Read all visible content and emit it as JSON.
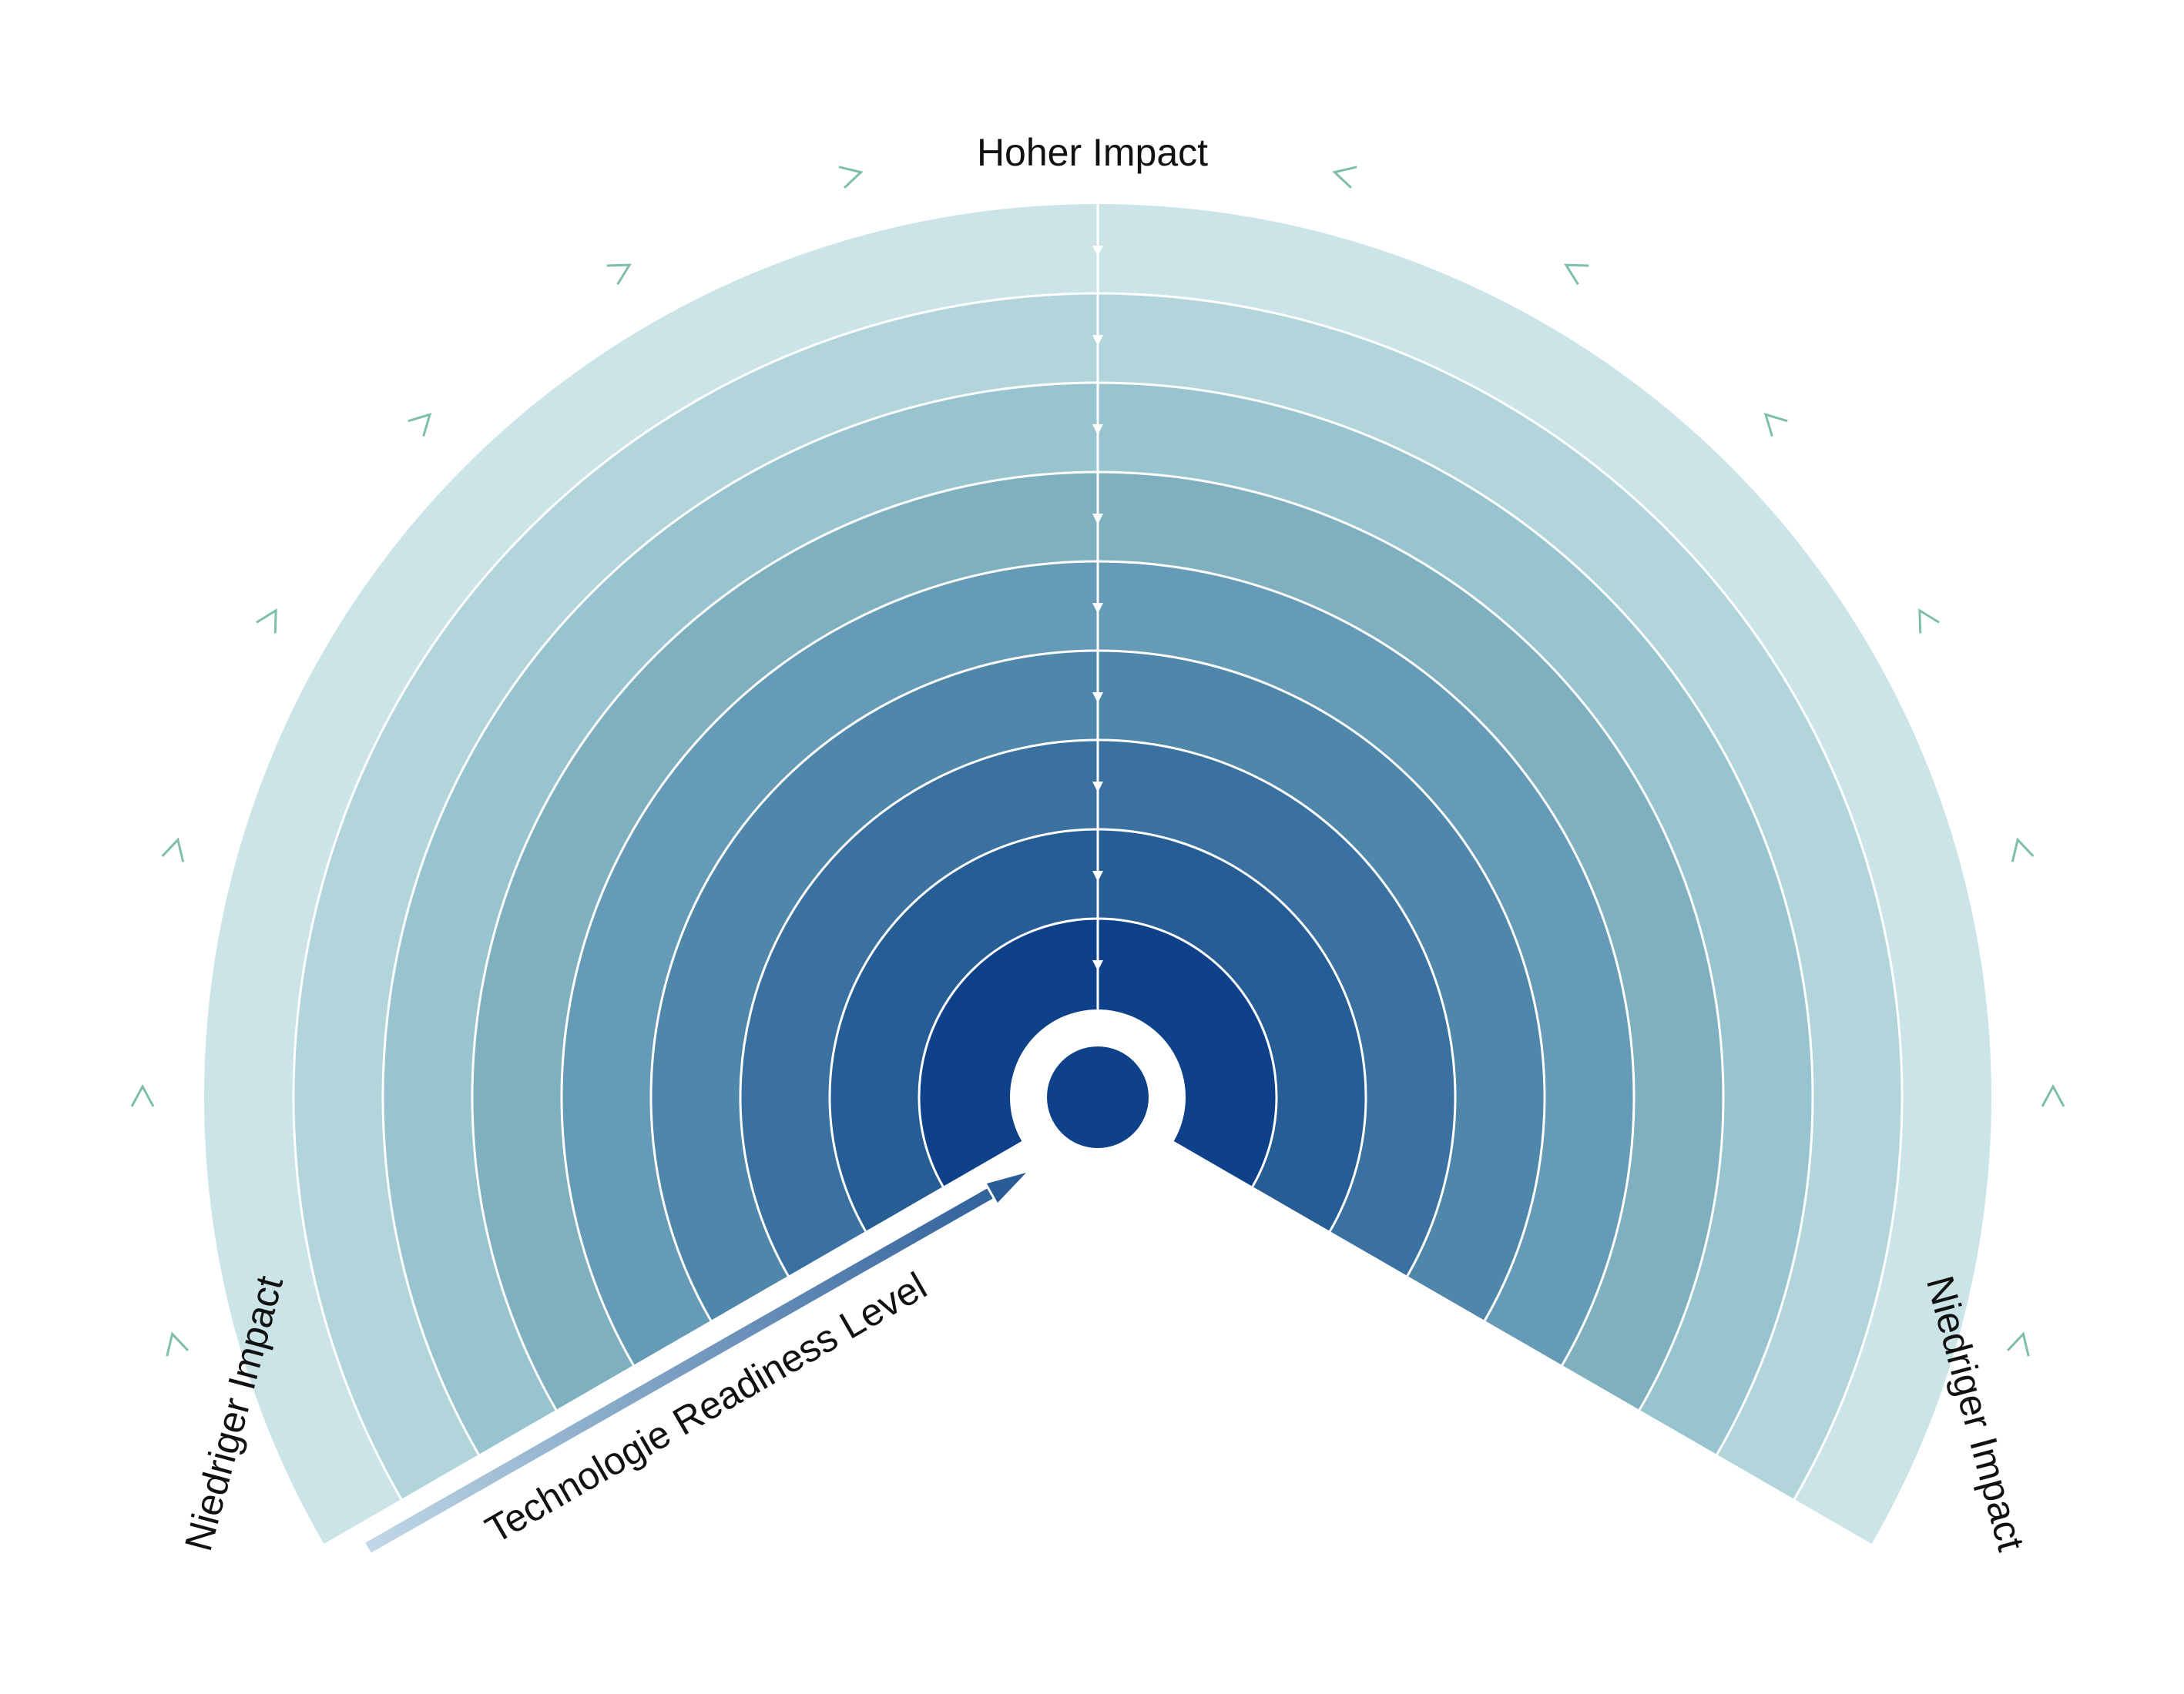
{
  "labels": {
    "top": "Hoher Impact",
    "left": "Niedriger Impact",
    "right": "Niedriger Impact",
    "axis": "Technologie Readiness Level"
  },
  "rings": {
    "count": 10,
    "colors": [
      "#cbe4e7",
      "#b1d5db",
      "#98c4cf",
      "#7fb0bf",
      "#659bb6",
      "#4f87ab",
      "#3a71a0",
      "#265d94",
      "#0f418a"
    ],
    "center_color": "#0f418a",
    "separator_color": "#ffffff",
    "chevron_color": "#7fbfa6"
  },
  "arrow": {
    "start_color": "#c0d8e6",
    "end_color": "#2a5c98"
  }
}
